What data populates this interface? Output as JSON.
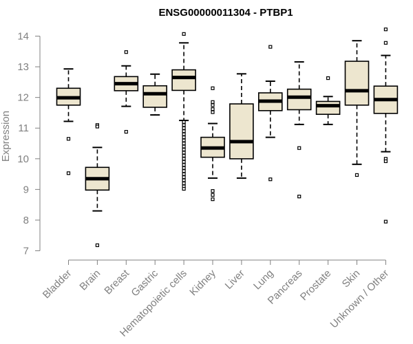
{
  "chart_data": {
    "type": "box",
    "title": "ENSG00000011304 - PTBP1",
    "xlabel": "",
    "ylabel": "Expression",
    "ylim": [
      7,
      14
    ],
    "yticks": [
      7,
      8,
      9,
      10,
      11,
      12,
      13,
      14
    ],
    "colors": {
      "box_fill": "#ede6cf",
      "stroke": "#000000",
      "axis": "#808080"
    },
    "categories": [
      "Bladder",
      "Brain",
      "Breast",
      "Gastric",
      "Hematopoietic cells",
      "Kidney",
      "Liver",
      "Lung",
      "Pancreas",
      "Prostate",
      "Skin",
      "Unknown / Other"
    ],
    "boxes": [
      {
        "q1": 11.75,
        "median": 11.99,
        "q3": 12.3,
        "whisker_low": 11.22,
        "whisker_high": 12.93,
        "outliers": [
          10.65,
          9.53
        ]
      },
      {
        "q1": 8.98,
        "median": 9.35,
        "q3": 9.72,
        "whisker_low": 8.3,
        "whisker_high": 10.37,
        "outliers": [
          11.1,
          11.05,
          7.18
        ]
      },
      {
        "q1": 12.22,
        "median": 12.45,
        "q3": 12.68,
        "whisker_low": 11.71,
        "whisker_high": 13.03,
        "outliers": [
          13.48,
          10.88
        ]
      },
      {
        "q1": 11.68,
        "median": 12.12,
        "q3": 12.38,
        "whisker_low": 11.43,
        "whisker_high": 12.76,
        "outliers": []
      },
      {
        "q1": 12.23,
        "median": 12.65,
        "q3": 12.9,
        "whisker_low": 11.25,
        "whisker_high": 13.78,
        "outliers": [
          14.07,
          11.2,
          11.1,
          11.0,
          10.9,
          10.8,
          10.7,
          10.6,
          10.5,
          10.4,
          10.3,
          10.2,
          10.1,
          10.0,
          9.9,
          9.8,
          9.7,
          9.6,
          9.5,
          9.4,
          9.3,
          9.2,
          9.1,
          9.02
        ]
      },
      {
        "q1": 10.05,
        "median": 10.35,
        "q3": 10.7,
        "whisker_low": 9.37,
        "whisker_high": 11.15,
        "outliers": [
          12.3,
          11.85,
          11.75,
          11.62,
          11.52,
          8.95,
          8.82,
          8.68
        ]
      },
      {
        "q1": 10.0,
        "median": 10.56,
        "q3": 11.79,
        "whisker_low": 9.37,
        "whisker_high": 12.77,
        "outliers": []
      },
      {
        "q1": 11.57,
        "median": 11.88,
        "q3": 12.15,
        "whisker_low": 10.7,
        "whisker_high": 12.53,
        "outliers": [
          13.65,
          9.33
        ]
      },
      {
        "q1": 11.6,
        "median": 12.01,
        "q3": 12.27,
        "whisker_low": 11.12,
        "whisker_high": 13.16,
        "outliers": [
          10.35,
          8.77
        ]
      },
      {
        "q1": 11.45,
        "median": 11.73,
        "q3": 11.87,
        "whisker_low": 11.12,
        "whisker_high": 12.03,
        "outliers": [
          12.63
        ]
      },
      {
        "q1": 11.75,
        "median": 12.22,
        "q3": 13.18,
        "whisker_low": 9.82,
        "whisker_high": 13.85,
        "outliers": [
          9.47
        ]
      },
      {
        "q1": 11.48,
        "median": 11.93,
        "q3": 12.37,
        "whisker_low": 10.23,
        "whisker_high": 13.37,
        "outliers": [
          14.22,
          13.78,
          10.0,
          9.92,
          7.95
        ]
      }
    ]
  }
}
